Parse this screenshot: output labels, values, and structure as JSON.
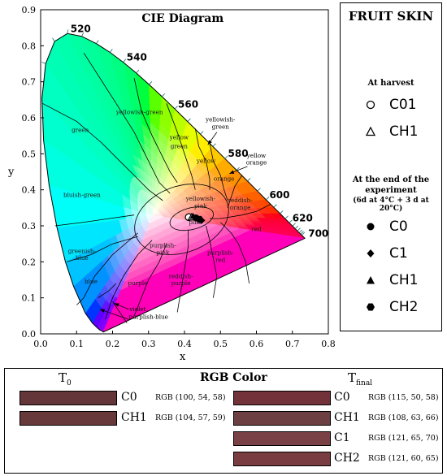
{
  "chart_data": {
    "type": "scatter",
    "title": "CIE Diagram",
    "xlabel": "x",
    "ylabel": "y",
    "xlim": [
      0.0,
      0.8
    ],
    "ylim": [
      0.0,
      0.9
    ],
    "xticks": [
      "0.0",
      "0.1",
      "0.2",
      "0.3",
      "0.4",
      "0.5",
      "0.6",
      "0.7",
      "0.8"
    ],
    "yticks": [
      "0.0",
      "0.1",
      "0.2",
      "0.3",
      "0.4",
      "0.5",
      "0.6",
      "0.7",
      "0.8",
      "0.9"
    ],
    "wavelength_labels": [
      {
        "text": "520",
        "x": 0.074,
        "y": 0.834
      },
      {
        "text": "540",
        "x": 0.23,
        "y": 0.754
      },
      {
        "text": "560",
        "x": 0.373,
        "y": 0.624
      },
      {
        "text": "580",
        "x": 0.512,
        "y": 0.487
      },
      {
        "text": "600",
        "x": 0.627,
        "y": 0.372
      },
      {
        "text": "620",
        "x": 0.691,
        "y": 0.308
      },
      {
        "text": "700",
        "x": 0.735,
        "y": 0.265
      }
    ],
    "region_labels": [
      {
        "text": "green",
        "x": 0.11,
        "y": 0.56
      },
      {
        "text": "yellowish-green",
        "x": 0.275,
        "y": 0.61
      },
      {
        "text": "yellow",
        "x": 0.385,
        "y": 0.54
      },
      {
        "text": "green",
        "x": 0.385,
        "y": 0.515
      },
      {
        "text": "yellow",
        "x": 0.46,
        "y": 0.475
      },
      {
        "text": "orange",
        "x": 0.51,
        "y": 0.425
      },
      {
        "text": "bluish-green",
        "x": 0.115,
        "y": 0.38
      },
      {
        "text": "yellowish-",
        "x": 0.445,
        "y": 0.37
      },
      {
        "text": "pink",
        "x": 0.445,
        "y": 0.35
      },
      {
        "text": "reddish-",
        "x": 0.555,
        "y": 0.365
      },
      {
        "text": "orange",
        "x": 0.555,
        "y": 0.345
      },
      {
        "text": "pink",
        "x": 0.43,
        "y": 0.305
      },
      {
        "text": "red",
        "x": 0.6,
        "y": 0.285
      },
      {
        "text": "greenish-",
        "x": 0.115,
        "y": 0.225
      },
      {
        "text": "blue",
        "x": 0.115,
        "y": 0.205
      },
      {
        "text": "purplish-",
        "x": 0.34,
        "y": 0.24
      },
      {
        "text": "pink",
        "x": 0.34,
        "y": 0.22
      },
      {
        "text": "purplish-",
        "x": 0.5,
        "y": 0.22
      },
      {
        "text": "red",
        "x": 0.5,
        "y": 0.2
      },
      {
        "text": "blue",
        "x": 0.14,
        "y": 0.14
      },
      {
        "text": "purple",
        "x": 0.27,
        "y": 0.135
      },
      {
        "text": "reddish-",
        "x": 0.39,
        "y": 0.155
      },
      {
        "text": "purple",
        "x": 0.39,
        "y": 0.135
      }
    ],
    "annotation_labels": [
      {
        "text": "yellowish-",
        "x": 0.5,
        "y": 0.59
      },
      {
        "text": "green",
        "x": 0.5,
        "y": 0.57
      },
      {
        "text": "yellow",
        "x": 0.6,
        "y": 0.49
      },
      {
        "text": "orange",
        "x": 0.6,
        "y": 0.47
      },
      {
        "text": "violet",
        "x": 0.27,
        "y": 0.063
      },
      {
        "text": "purplish-blue",
        "x": 0.3,
        "y": 0.042
      }
    ],
    "series": [
      {
        "name": "C01",
        "marker": "open-circle",
        "points": [
          {
            "x": 0.412,
            "y": 0.324
          }
        ]
      },
      {
        "name": "CH1",
        "marker": "open-triangle",
        "points": [
          {
            "x": 0.42,
            "y": 0.324
          }
        ]
      },
      {
        "name": "C0",
        "marker": "filled-circle",
        "points": [
          {
            "x": 0.432,
            "y": 0.322
          }
        ]
      },
      {
        "name": "C1",
        "marker": "filled-diamond",
        "points": [
          {
            "x": 0.448,
            "y": 0.315
          }
        ]
      },
      {
        "name": "CH1",
        "marker": "filled-triangle",
        "points": [
          {
            "x": 0.424,
            "y": 0.327
          }
        ]
      },
      {
        "name": "CH2",
        "marker": "filled-hexagon",
        "points": [
          {
            "x": 0.442,
            "y": 0.318
          }
        ]
      }
    ]
  },
  "legend": {
    "title": "FRUIT SKIN",
    "harvest_heading": "At harvest",
    "harvest_items": [
      {
        "symbol": "open-circle",
        "label": "C01"
      },
      {
        "symbol": "open-triangle",
        "label": "CH1"
      }
    ],
    "end_heading_line1": "At the end of the",
    "end_heading_line2": "experiment",
    "end_heading_line3": "(6d at 4°C + 3 d at 20°C)",
    "end_items": [
      {
        "symbol": "filled-circle",
        "label": "C0"
      },
      {
        "symbol": "filled-diamond",
        "label": "C1"
      },
      {
        "symbol": "filled-triangle",
        "label": "CH1"
      },
      {
        "symbol": "filled-hexagon",
        "label": "CH2"
      }
    ]
  },
  "rgb_panel": {
    "title": "RGB Color",
    "t0_label": "T",
    "t0_sub": "0",
    "tfinal_label": "T",
    "tfinal_sub": "final",
    "t0": [
      {
        "label": "C0",
        "rgb_text": "RGB (100, 54, 58)",
        "color": "#64363a"
      },
      {
        "label": "CH1",
        "rgb_text": "RGB (104, 57, 59)",
        "color": "#68393b"
      }
    ],
    "tfinal": [
      {
        "label": "C0",
        "rgb_text": "RGB (115, 50, 58)",
        "color": "#73323a"
      },
      {
        "label": "CH1",
        "rgb_text": "RGB (108, 63, 66)",
        "color": "#6c3f42"
      },
      {
        "label": "C1",
        "rgb_text": "RGB (121, 65, 70)",
        "color": "#794146"
      },
      {
        "label": "CH2",
        "rgb_text": "RGB (121, 60, 65)",
        "color": "#793c41"
      }
    ]
  }
}
